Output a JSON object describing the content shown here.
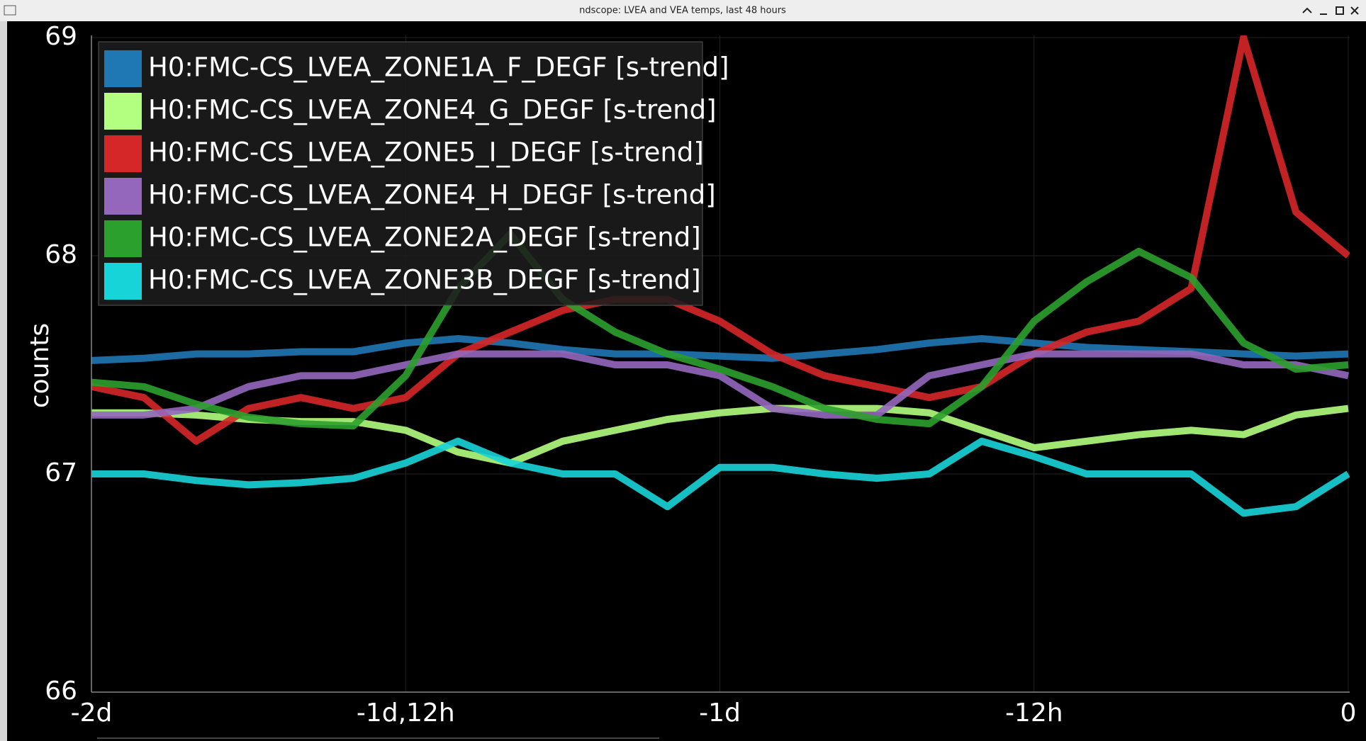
{
  "window_title": "ndscope: LVEA and VEA temps, last 48 hours",
  "chart_data": {
    "type": "line",
    "ylabel": "counts",
    "x": [
      -48,
      -46,
      -44,
      -42,
      -40,
      -38,
      -36,
      -34,
      -32,
      -30,
      -28,
      -26,
      -24,
      -22,
      -20,
      -18,
      -16,
      -14,
      -12,
      -10,
      -8,
      -6,
      -4,
      -2,
      0
    ],
    "xlim": [
      -48,
      0
    ],
    "xticks": [
      {
        "value": -48,
        "label": "-2d"
      },
      {
        "value": -36,
        "label": "-1d,12h"
      },
      {
        "value": -24,
        "label": "-1d"
      },
      {
        "value": -12,
        "label": "-12h"
      },
      0
    ],
    "ylim": [
      66,
      69
    ],
    "yticks": [
      66,
      67,
      68,
      69
    ],
    "grid": true,
    "legend": "upper left",
    "series": [
      {
        "name": "H0:FMC-CS_LVEA_ZONE1A_F_DEGF [s-trend]",
        "color": "#1f77b4",
        "values": [
          67.52,
          67.53,
          67.55,
          67.55,
          67.56,
          67.56,
          67.6,
          67.62,
          67.6,
          67.57,
          67.55,
          67.55,
          67.54,
          67.53,
          67.55,
          67.57,
          67.6,
          67.62,
          67.6,
          67.58,
          67.57,
          67.56,
          67.55,
          67.54,
          67.55
        ]
      },
      {
        "name": "H0:FMC-CS_LVEA_ZONE4_G_DEGF [s-trend]",
        "color": "#b3ff7f",
        "values": [
          67.28,
          67.28,
          67.27,
          67.25,
          67.24,
          67.24,
          67.2,
          67.1,
          67.05,
          67.15,
          67.2,
          67.25,
          67.28,
          67.3,
          67.3,
          67.3,
          67.28,
          67.2,
          67.12,
          67.15,
          67.18,
          67.2,
          67.18,
          67.27,
          67.3
        ]
      },
      {
        "name": "H0:FMC-CS_LVEA_ZONE5_I_DEGF [s-trend]",
        "color": "#d62728",
        "values": [
          67.4,
          67.35,
          67.15,
          67.3,
          67.35,
          67.3,
          67.35,
          67.55,
          67.65,
          67.75,
          67.8,
          67.8,
          67.7,
          67.55,
          67.45,
          67.4,
          67.35,
          67.4,
          67.55,
          67.65,
          67.7,
          67.85,
          69.0,
          68.2,
          68.0
        ]
      },
      {
        "name": "H0:FMC-CS_LVEA_ZONE4_H_DEGF [s-trend]",
        "color": "#9467bd",
        "values": [
          67.27,
          67.27,
          67.3,
          67.4,
          67.45,
          67.45,
          67.5,
          67.55,
          67.55,
          67.55,
          67.5,
          67.5,
          67.45,
          67.3,
          67.27,
          67.27,
          67.45,
          67.5,
          67.55,
          67.55,
          67.55,
          67.55,
          67.5,
          67.5,
          67.45
        ]
      },
      {
        "name": "H0:FMC-CS_LVEA_ZONE2A_DEGF [s-trend]",
        "color": "#2ca02c",
        "values": [
          67.42,
          67.4,
          67.32,
          67.26,
          67.23,
          67.22,
          67.45,
          67.85,
          68.1,
          67.8,
          67.65,
          67.55,
          67.48,
          67.4,
          67.3,
          67.25,
          67.23,
          67.4,
          67.7,
          67.88,
          68.02,
          67.9,
          67.6,
          67.48,
          67.5
        ]
      },
      {
        "name": "H0:FMC-CS_LVEA_ZONE3B_DEGF [s-trend]",
        "color": "#17d4d8",
        "values": [
          67.0,
          67.0,
          66.97,
          66.95,
          66.96,
          66.98,
          67.05,
          67.15,
          67.05,
          67.0,
          67.0,
          66.85,
          67.03,
          67.03,
          67.0,
          66.98,
          67.0,
          67.15,
          67.08,
          67.0,
          67.0,
          67.0,
          66.82,
          66.85,
          67.0
        ]
      }
    ]
  }
}
